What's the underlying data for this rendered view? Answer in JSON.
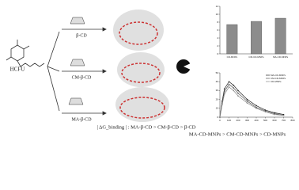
{
  "labels": {
    "drug": "HCFU",
    "cd1": "β-CD",
    "cd2": "CM-β-CD",
    "cd3": "MA-β-CD",
    "binding_order": "| ΔG_binding | : MA-β-CD > CM-β-CD > β-CD",
    "loading_order": "MA-CD-MNPs > CM-CD-MNPs > CD-MNPs"
  },
  "bar_chart": {
    "type": "bar",
    "categories": [
      "CD-MNPs",
      "CM-CD-MNPs",
      "MA-CD-MNPs"
    ],
    "values": [
      7.4,
      8.2,
      9.0
    ],
    "color": "#8c8c8c",
    "ylim": [
      0,
      12
    ],
    "yticks": [
      0,
      2,
      4,
      6,
      8,
      10,
      12
    ]
  },
  "line_chart": {
    "type": "line",
    "x": [
      0,
      25,
      50,
      100,
      150,
      200,
      300,
      400,
      500,
      600,
      700
    ],
    "series": [
      {
        "name": "MA-CD-MNPs",
        "color": "#222222",
        "values": [
          0,
          18,
          32,
          40,
          36,
          30,
          20,
          13,
          8,
          5,
          3
        ]
      },
      {
        "name": "CM-CD-MNPs",
        "color": "#555555",
        "values": [
          0,
          16,
          29,
          37,
          33,
          27,
          18,
          11,
          7,
          4,
          2
        ]
      },
      {
        "name": "CD-MNPs",
        "color": "#888888",
        "values": [
          0,
          14,
          26,
          34,
          30,
          24,
          16,
          10,
          6,
          3,
          2
        ]
      }
    ],
    "xlim": [
      0,
      800
    ],
    "ylim": [
      0,
      50
    ],
    "xticks": [
      0,
      100,
      200,
      300,
      400,
      500,
      600,
      700,
      800
    ],
    "yticks": [
      0,
      10,
      20,
      30,
      40,
      50
    ]
  }
}
